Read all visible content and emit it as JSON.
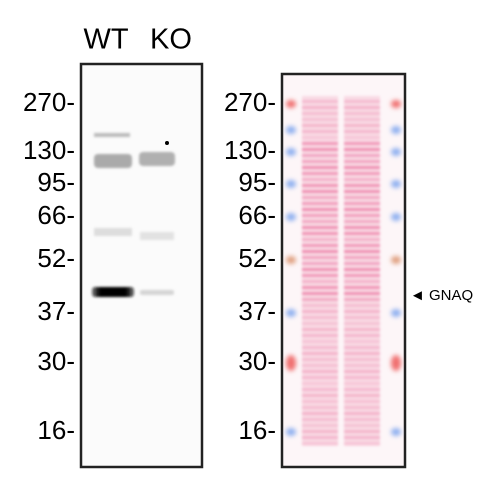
{
  "lane_labels": [
    "WT",
    "KO"
  ],
  "left_panel": {
    "markers": [
      "270-",
      "130-",
      "95-",
      "66-",
      "52-",
      "37-",
      "30-",
      "16-"
    ]
  },
  "right_panel": {
    "markers": [
      "270-",
      "130-",
      "95-",
      "66-",
      "52-",
      "37-",
      "30-",
      "16-"
    ]
  },
  "annotation": "◄ GNAQ"
}
